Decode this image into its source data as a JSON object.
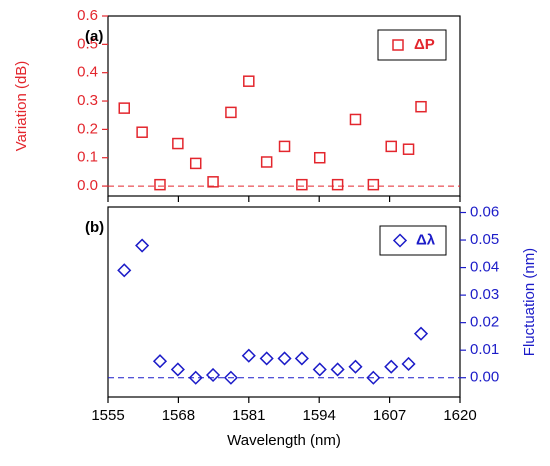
{
  "chart_data": [
    {
      "type": "scatter",
      "panel_label": "(a)",
      "ylabel": "Variation (dB)",
      "color": "#e3262d",
      "marker": "square",
      "yaxis_side": "left",
      "series": [
        {
          "name": "ΔP",
          "color": "#e3262d",
          "x": [
            1558,
            1561.3,
            1564.6,
            1567.9,
            1571.2,
            1574.4,
            1577.7,
            1581,
            1584.3,
            1587.6,
            1590.8,
            1594.1,
            1597.4,
            1600.7,
            1604,
            1607.3,
            1610.5,
            1612.8
          ],
          "values": [
            0.275,
            0.19,
            0.005,
            0.15,
            0.08,
            0.015,
            0.26,
            0.37,
            0.085,
            0.14,
            0.005,
            0.1,
            0.005,
            0.235,
            0.005,
            0.14,
            0.13,
            0.28
          ]
        }
      ],
      "xlim": [
        1555,
        1620
      ],
      "xticks": [
        1555,
        1568,
        1581,
        1594,
        1607,
        1620
      ],
      "ylim": [
        -0.035,
        0.6
      ],
      "yticks": [
        {
          "value": 0,
          "label": "0.0"
        },
        0.1,
        0.2,
        0.3,
        0.4,
        0.5,
        0.6
      ]
    },
    {
      "type": "scatter",
      "panel_label": "(b)",
      "ylabel": "Fluctuation (nm)",
      "xlabel": "Wavelength (nm)",
      "color": "#1c1cc8",
      "marker": "diamond",
      "yaxis_side": "right",
      "series": [
        {
          "name": "Δλ",
          "color": "#1c1cc8",
          "x": [
            1558,
            1561.3,
            1564.6,
            1567.9,
            1571.2,
            1574.4,
            1577.7,
            1581,
            1584.3,
            1587.6,
            1590.8,
            1594.1,
            1597.4,
            1600.7,
            1604,
            1607.3,
            1610.5,
            1612.8
          ],
          "values": [
            0.039,
            0.048,
            0.006,
            0.003,
            0,
            0.001,
            0,
            0.008,
            0.007,
            0.007,
            0.007,
            0.003,
            0.003,
            0.004,
            0,
            0.004,
            0.005,
            0.016
          ]
        }
      ],
      "xlim": [
        1555,
        1620
      ],
      "xticks": [
        1555,
        1568,
        1581,
        1594,
        1607,
        1620
      ],
      "ylim": [
        -0.007,
        0.062
      ],
      "yticks": [
        {
          "value": 0,
          "label": "0.00"
        },
        0.01,
        0.02,
        0.03,
        0.04,
        0.05,
        0.06
      ]
    }
  ]
}
